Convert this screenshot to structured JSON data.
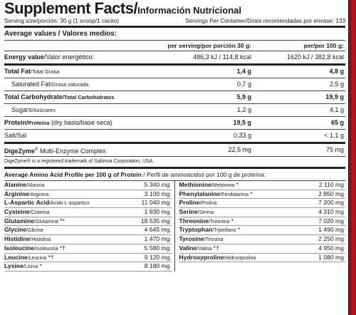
{
  "title": {
    "en": "Supplement Facts",
    "sep": "/",
    "es": "Información Nutricional"
  },
  "serving": {
    "left": "Serving size/porción: 30 g (1 scoop/1 cacito)",
    "right": "Servings Per Container/Dosis recomendadas por envase: 133"
  },
  "average": {
    "heading": "Average values / Valores medios:",
    "col1": "per serving/por porción 30 g:",
    "col2": "per/por 100 g:"
  },
  "nutrients": [
    {
      "en": "Energy value",
      "es": "Valor energético:",
      "v1": "486,3 kJ / 114,8 kcal",
      "v2": "1620 kJ / 382,8 kcal"
    },
    {
      "en": "Total Fat",
      "es": "Total Grasa",
      "v1": "1,4 g",
      "v2": "4,8 g"
    },
    {
      "en": "Saturated Fat",
      "es": "Grasa saturada",
      "v1": "0,7 g",
      "v2": "2,5 g"
    },
    {
      "en": "Total Carbohydrate",
      "es": "Total Carbohidratos",
      "v1": "5,9 g",
      "v2": "19,9 g"
    },
    {
      "en": "Sugars",
      "es": "Azúcares",
      "v1": "1,2 g",
      "v2": "4,1 g"
    },
    {
      "en": "Protein",
      "es": "Proteína",
      "extra": "(dry basis/base seca)",
      "v1": "19,5 g",
      "v2": "65 g"
    },
    {
      "en": "Salt",
      "es": "Sal",
      "v1": "0,33 g",
      "v2": "< 1,1 g"
    }
  ],
  "digezyme": {
    "name": "DigeZyme",
    "reg": "®",
    "desc": "Multi-Enzyme Complex",
    "v1": "22,5 mg",
    "v2": "75 mg",
    "note": "DigeZyme® is a registered trademark of Sabinsa Corporation, USA."
  },
  "amino": {
    "heading": "Average Amino Acid Profile per 100 g of Protein",
    "heading_es": "/ Perfil de aminoácidos por 100 g de proteína:",
    "left": [
      {
        "en": "Alanine",
        "es": "Alanina",
        "mark": "",
        "v": "5 340 mg"
      },
      {
        "en": "Arginine",
        "es": "Arginina",
        "mark": "",
        "v": "3 100 mg"
      },
      {
        "en": "L-Aspartic Acid",
        "es": "Ácido L-aspártico",
        "mark": "",
        "v": "11 040 mg"
      },
      {
        "en": "Cysteine",
        "es": "Cisteína",
        "mark": "",
        "v": "1 930 mg"
      },
      {
        "en": "Glutamine",
        "es": "Glutamina",
        "mark": "**",
        "v": "18 535 mg"
      },
      {
        "en": "Glycine",
        "es": "Glicina",
        "mark": "",
        "v": "4 645 mg"
      },
      {
        "en": "Histidine",
        "es": "Histidina",
        "mark": "",
        "v": "1 470 mg"
      },
      {
        "en": "Isoleucine",
        "es": "Isoleucina",
        "mark": "*†",
        "v": "5 580 mg"
      },
      {
        "en": "Leucine",
        "es": "Leucina",
        "mark": "*†",
        "v": "9 120 mg"
      },
      {
        "en": "Lysine",
        "es": "Lisina",
        "mark": "*",
        "v": "8 180 mg"
      }
    ],
    "right": [
      {
        "en": "Methionine",
        "es": "Metionina",
        "mark": "*",
        "v": "2 110 mg"
      },
      {
        "en": "Phenylalanine",
        "es": "Fenilalanina",
        "mark": "*",
        "v": "2 850 mg"
      },
      {
        "en": "Proline",
        "es": "Prolina",
        "mark": "",
        "v": "7 200 mg"
      },
      {
        "en": "Serine",
        "es": "Serina",
        "mark": "",
        "v": "4 310 mg"
      },
      {
        "en": "Threonine",
        "es": "Treonina",
        "mark": "*",
        "v": "7 020 mg"
      },
      {
        "en": "Tryptophan",
        "es": "Triptófano",
        "mark": "*",
        "v": "1 490 mg"
      },
      {
        "en": "Tyrosine",
        "es": "Tirosina",
        "mark": "",
        "v": "2 250 mg"
      },
      {
        "en": "Valine",
        "es": "Valina",
        "mark": "*†",
        "v": "4 950 mg"
      },
      {
        "en": "Hydroxyproline",
        "es": "Hidroxiprolina",
        "mark": "",
        "v": "1 080 mg"
      }
    ]
  },
  "colors": {
    "accent_red": "#b3101d",
    "text": "#1a1a1a",
    "rule": "#222222"
  }
}
